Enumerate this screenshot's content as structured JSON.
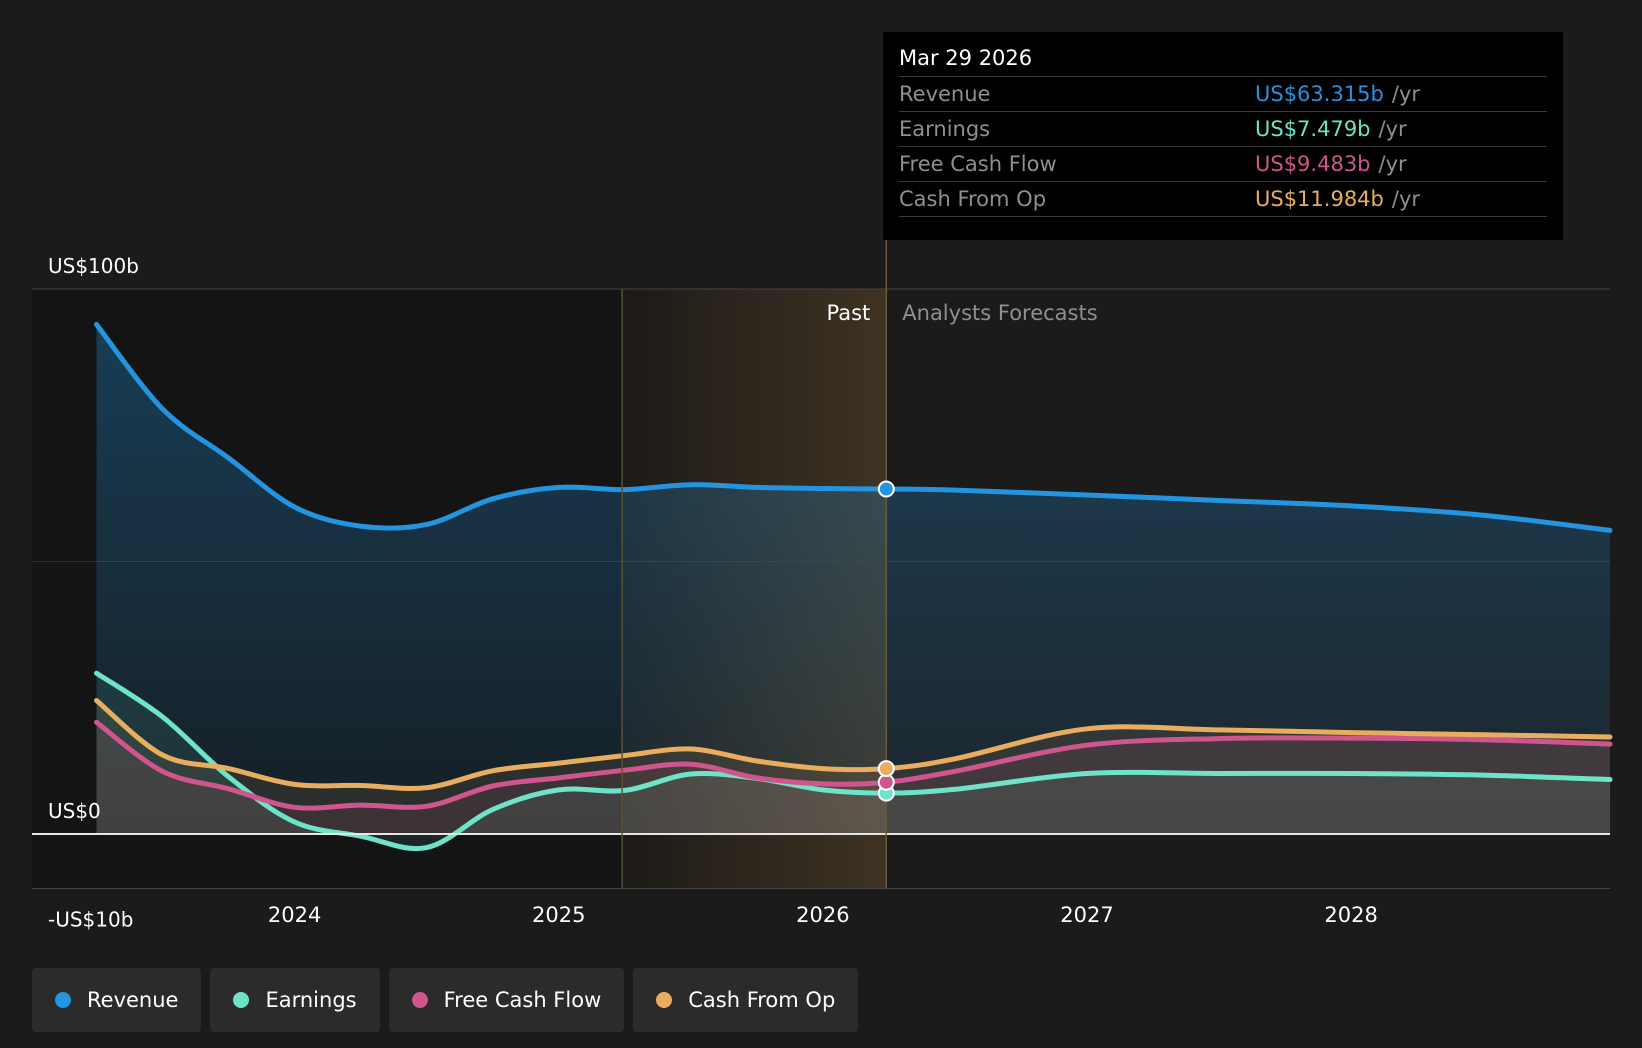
{
  "tooltip": {
    "date": "Mar 29 2026",
    "rows": [
      {
        "label": "Revenue",
        "value": "US$63.315b",
        "unit": "/yr",
        "color": "#2394df"
      },
      {
        "label": "Earnings",
        "value": "US$7.479b",
        "unit": "/yr",
        "color": "#6fe3c8"
      },
      {
        "label": "Free Cash Flow",
        "value": "US$9.483b",
        "unit": "/yr",
        "color": "#d0558e"
      },
      {
        "label": "Cash From Op",
        "value": "US$11.984b",
        "unit": "/yr",
        "color": "#e8ad5f"
      }
    ]
  },
  "chart_data": {
    "type": "area",
    "x_unit": "year",
    "xlim": [
      2023.25,
      2028.98
    ],
    "ylim": [
      -10,
      100
    ],
    "y_tick_labels": [
      {
        "value": 100,
        "label": "US$100b"
      },
      {
        "value": 0,
        "label": "US$0"
      },
      {
        "value": -10,
        "label": "-US$10b"
      }
    ],
    "x_ticks": [
      {
        "value": 2024,
        "label": "2024"
      },
      {
        "value": 2025,
        "label": "2025"
      },
      {
        "value": 2026,
        "label": "2026"
      },
      {
        "value": 2027,
        "label": "2027"
      },
      {
        "value": 2028,
        "label": "2028"
      }
    ],
    "past_label": "Past",
    "forecast_label": "Analysts Forecasts",
    "highlight_range": [
      2025.24,
      2026.24
    ],
    "divider_x": 2026.24,
    "grid": true,
    "legend_position": "bottom",
    "series": [
      {
        "name": "Revenue",
        "color": "#2394df",
        "x": [
          2023.25,
          2023.5,
          2023.75,
          2024.0,
          2024.25,
          2024.5,
          2024.75,
          2025.0,
          2025.25,
          2025.5,
          2025.75,
          2026.0,
          2026.24,
          2026.5,
          2027.0,
          2027.5,
          2028.0,
          2028.5,
          2028.98
        ],
        "y": [
          93.5,
          78,
          69,
          60,
          56.5,
          56.8,
          61.5,
          63.6,
          63.2,
          64.1,
          63.6,
          63.4,
          63.3,
          63.1,
          62.2,
          61.2,
          60.2,
          58.5,
          55.7
        ]
      },
      {
        "name": "Earnings",
        "color": "#6fe3c8",
        "x": [
          2023.25,
          2023.5,
          2023.75,
          2024.0,
          2024.25,
          2024.5,
          2024.75,
          2025.0,
          2025.25,
          2025.5,
          2025.75,
          2026.0,
          2026.24,
          2026.5,
          2027.0,
          2027.5,
          2028.0,
          2028.5,
          2028.98
        ],
        "y": [
          29.5,
          21.5,
          10.5,
          2.2,
          -0.4,
          -2.5,
          4.5,
          8.1,
          8.0,
          11.0,
          10.2,
          8.1,
          7.5,
          8.2,
          11.1,
          11.1,
          11.1,
          10.8,
          10.0
        ]
      },
      {
        "name": "Free Cash Flow",
        "color": "#d0558e",
        "x": [
          2023.25,
          2023.5,
          2023.75,
          2024.0,
          2024.25,
          2024.5,
          2024.75,
          2025.0,
          2025.25,
          2025.5,
          2025.75,
          2026.0,
          2026.24,
          2026.5,
          2027.0,
          2027.5,
          2028.0,
          2028.5,
          2028.98
        ],
        "y": [
          20.5,
          11.5,
          8.3,
          4.9,
          5.3,
          5.1,
          8.8,
          10.3,
          11.7,
          12.8,
          10.3,
          9.2,
          9.5,
          11.5,
          16.3,
          17.5,
          17.6,
          17.3,
          16.5
        ]
      },
      {
        "name": "Cash From Op",
        "color": "#e8ad5f",
        "x": [
          2023.25,
          2023.5,
          2023.75,
          2024.0,
          2024.25,
          2024.5,
          2024.75,
          2025.0,
          2025.25,
          2025.5,
          2025.75,
          2026.0,
          2026.24,
          2026.5,
          2027.0,
          2027.5,
          2028.0,
          2028.5,
          2028.98
        ],
        "y": [
          24.5,
          14.5,
          12.0,
          9.1,
          8.9,
          8.5,
          11.6,
          13.0,
          14.4,
          15.6,
          13.4,
          12.0,
          12.0,
          13.8,
          19.3,
          19.1,
          18.6,
          18.2,
          17.8
        ]
      }
    ]
  },
  "legend": {
    "items": [
      {
        "label": "Revenue",
        "color": "#2394df"
      },
      {
        "label": "Earnings",
        "color": "#6fe3c8"
      },
      {
        "label": "Free Cash Flow",
        "color": "#d0558e"
      },
      {
        "label": "Cash From Op",
        "color": "#e8ad5f"
      }
    ]
  }
}
